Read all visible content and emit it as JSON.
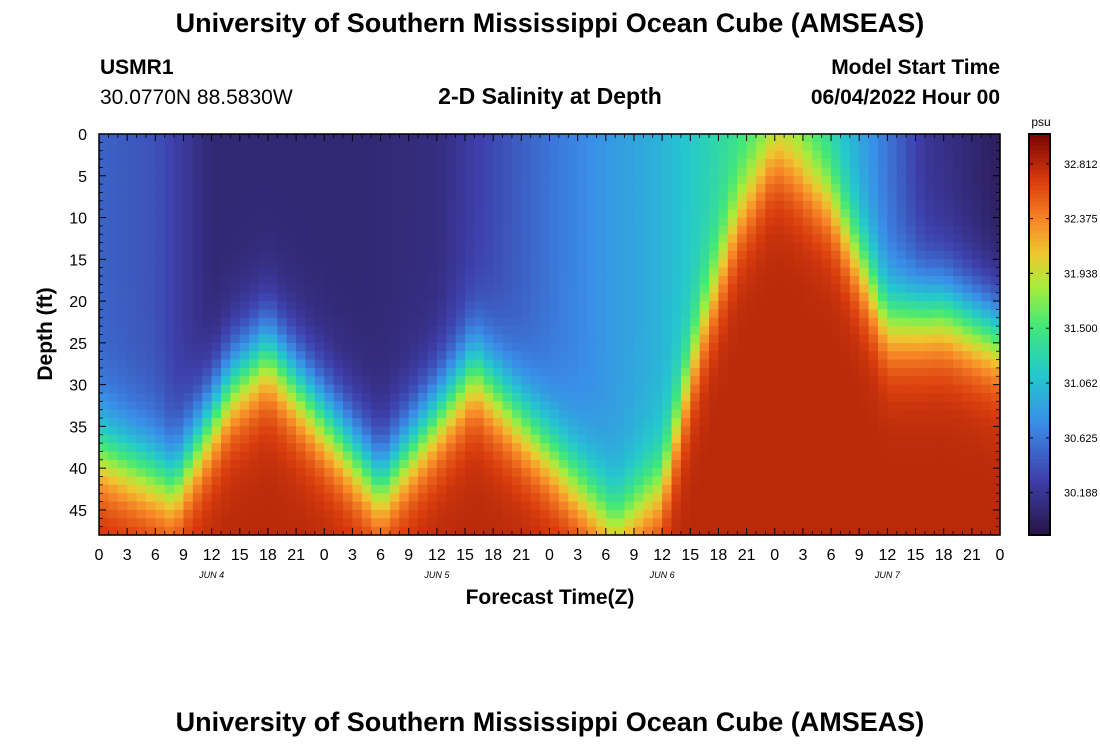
{
  "header": {
    "title_top": "University of Southern Mississippi Ocean Cube (AMSEAS)",
    "title_bottom": "University of Southern Mississippi Ocean Cube (AMSEAS)",
    "station_id": "USMR1",
    "station_coords": "30.0770N  88.5830W",
    "plot_title": "2-D Salinity at Depth",
    "model_start_label": "Model Start Time",
    "model_start_value": "06/04/2022 Hour 00"
  },
  "chart_data": {
    "type": "heatmap",
    "title": "2-D Salinity at Depth",
    "xlabel": "Forecast Time(Z)",
    "ylabel": "Depth (ft)",
    "x_range_hours": [
      0,
      96
    ],
    "x_tick_labels": [
      "0",
      "3",
      "6",
      "9",
      "12",
      "15",
      "18",
      "21",
      "0",
      "3",
      "6",
      "9",
      "12",
      "15",
      "18",
      "21",
      "0",
      "3",
      "6",
      "9",
      "12",
      "15",
      "18",
      "21",
      "0",
      "3",
      "6",
      "9",
      "12",
      "15",
      "18",
      "21",
      "0"
    ],
    "day_labels": [
      "JUN 4",
      "JUN 5",
      "JUN 6",
      "JUN 7"
    ],
    "ylim": [
      48,
      0
    ],
    "y_ticks": [
      0,
      5,
      10,
      15,
      20,
      25,
      30,
      35,
      40,
      45
    ],
    "colorbar": {
      "unit": "psu",
      "range": [
        29.85,
        33.05
      ],
      "tick_values": [
        32.812,
        32.375,
        31.938,
        31.5,
        31.062,
        30.625,
        30.188
      ],
      "tick_labels": [
        "32.812",
        "32.375",
        "31.938",
        "31.500",
        "31.062",
        "30.625",
        "30.188"
      ]
    },
    "surface_salinity_psu": [
      {
        "hour": 0,
        "value": 30.5
      },
      {
        "hour": 6,
        "value": 30.4
      },
      {
        "hour": 12,
        "value": 30.05
      },
      {
        "hour": 20,
        "value": 30.05
      },
      {
        "hour": 28,
        "value": 30.05
      },
      {
        "hour": 36,
        "value": 30.1
      },
      {
        "hour": 48,
        "value": 30.6
      },
      {
        "hour": 60,
        "value": 31.0
      },
      {
        "hour": 66,
        "value": 31.3
      },
      {
        "hour": 74,
        "value": 31.6
      },
      {
        "hour": 80,
        "value": 31.0
      },
      {
        "hour": 88,
        "value": 30.2
      },
      {
        "hour": 96,
        "value": 29.95
      }
    ],
    "halocline_depth_ft": [
      {
        "hour": 0,
        "value": 38
      },
      {
        "hour": 8,
        "value": 42
      },
      {
        "hour": 14,
        "value": 30
      },
      {
        "hour": 18,
        "value": 26
      },
      {
        "hour": 24,
        "value": 34
      },
      {
        "hour": 30,
        "value": 42
      },
      {
        "hour": 40,
        "value": 28
      },
      {
        "hour": 48,
        "value": 38
      },
      {
        "hour": 55,
        "value": 47
      },
      {
        "hour": 60,
        "value": 42
      },
      {
        "hour": 64,
        "value": 24
      },
      {
        "hour": 68,
        "value": 10
      },
      {
        "hour": 72,
        "value": 2
      },
      {
        "hour": 78,
        "value": 8
      },
      {
        "hour": 84,
        "value": 22
      },
      {
        "hour": 90,
        "value": 21
      },
      {
        "hour": 96,
        "value": 24
      }
    ],
    "bottom_salinity_psu": 32.8
  }
}
